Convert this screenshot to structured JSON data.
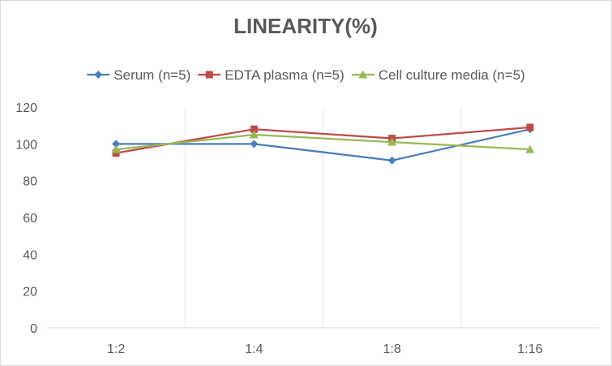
{
  "chart_data": {
    "type": "line",
    "title": "LINEARITY(%)",
    "xlabel": "",
    "ylabel": "",
    "categories": [
      "1:2",
      "1:4",
      "1:8",
      "1:16"
    ],
    "ylim": [
      0,
      120
    ],
    "yticks": [
      0,
      20,
      40,
      60,
      80,
      100,
      120
    ],
    "grid": "vertical lines between categories",
    "legend_position": "top",
    "series": [
      {
        "name": "Serum (n=5)",
        "values": [
          100,
          100,
          91,
          108
        ],
        "color": "#4a7ebb",
        "marker": "diamond"
      },
      {
        "name": "EDTA plasma (n=5)",
        "values": [
          95,
          108,
          103,
          109
        ],
        "color": "#be4b48",
        "marker": "square"
      },
      {
        "name": "Cell culture media (n=5)",
        "values": [
          97,
          105,
          101,
          97
        ],
        "color": "#98b954",
        "marker": "triangle"
      }
    ]
  }
}
